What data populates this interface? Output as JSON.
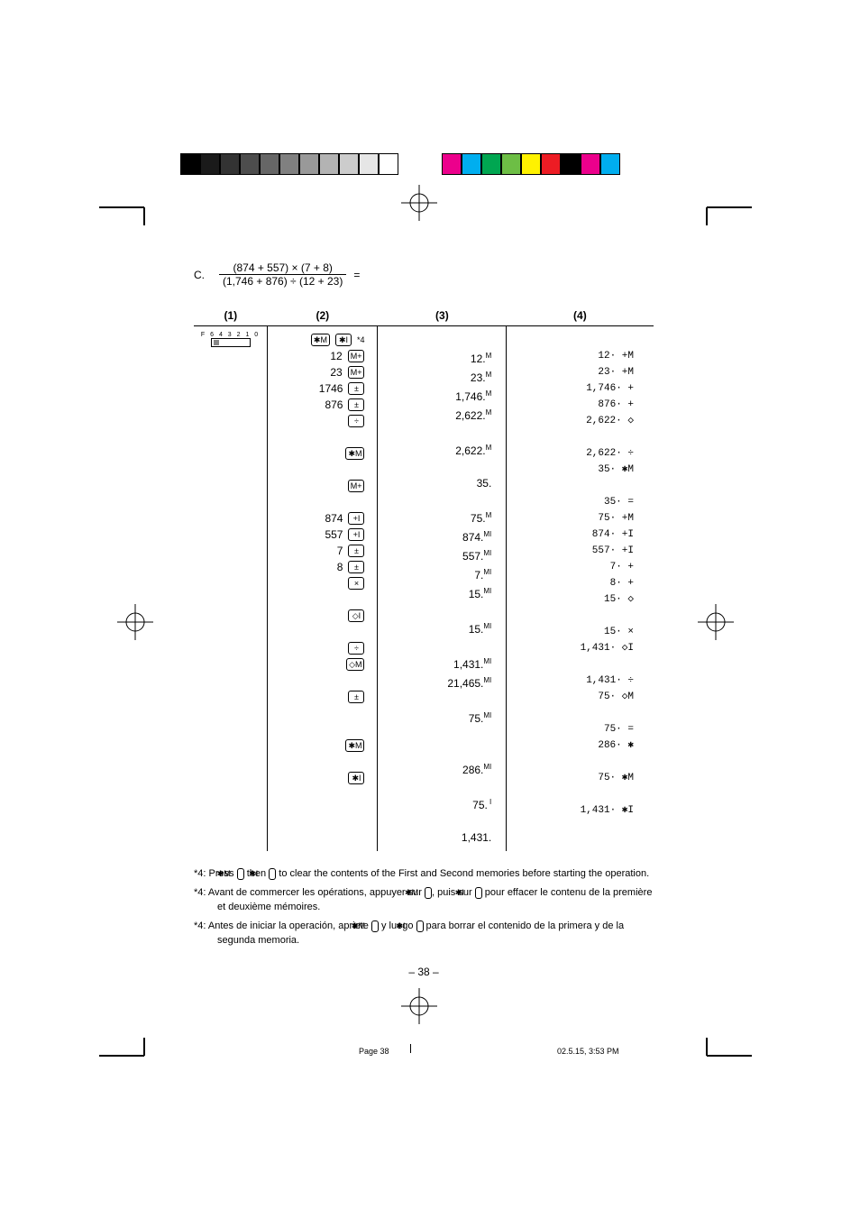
{
  "colorbars": {
    "left": [
      "#000000",
      "#1a1a1a",
      "#333333",
      "#4d4d4d",
      "#666666",
      "#808080",
      "#999999",
      "#b3b3b3",
      "#cccccc",
      "#e6e6e6",
      "#ffffff"
    ],
    "right": [
      "#ec008c",
      "#00aeef",
      "#00a651",
      "#6dbe45",
      "#fff200",
      "#ed1c24",
      "#000000",
      "#ec008c",
      "#00aeef"
    ]
  },
  "problem": {
    "label": "C.",
    "numerator": "(874 + 557) × (7 + 8)",
    "denominator": "(1,746 + 876) ÷ (12 + 23)",
    "equals": "="
  },
  "headers": {
    "c1": "(1)",
    "c2": "(2)",
    "c3": "(3)",
    "c4": "(4)"
  },
  "switch": "F 6 4 3 2 1 0",
  "c2": [
    {
      "num": "",
      "keys": [
        "✱M",
        "✱I"
      ],
      "suffix": "*4"
    },
    {
      "num": "12",
      "keys": [
        "M+"
      ]
    },
    {
      "num": "23",
      "keys": [
        "M+"
      ]
    },
    {
      "num": "1746",
      "keys": [
        "±"
      ]
    },
    {
      "num": "876",
      "keys": [
        "±"
      ]
    },
    {
      "num": "",
      "keys": [
        "÷"
      ]
    },
    {
      "num": "",
      "keys": []
    },
    {
      "num": "",
      "keys": [
        "✱M"
      ]
    },
    {
      "num": "",
      "keys": []
    },
    {
      "num": "",
      "keys": [
        "M+"
      ]
    },
    {
      "num": "",
      "keys": []
    },
    {
      "num": "874",
      "keys": [
        "+I"
      ]
    },
    {
      "num": "557",
      "keys": [
        "+I"
      ]
    },
    {
      "num": "7",
      "keys": [
        "±"
      ]
    },
    {
      "num": "8",
      "keys": [
        "±"
      ]
    },
    {
      "num": "",
      "keys": [
        "×"
      ]
    },
    {
      "num": "",
      "keys": []
    },
    {
      "num": "",
      "keys": [
        "◇I"
      ]
    },
    {
      "num": "",
      "keys": []
    },
    {
      "num": "",
      "keys": [
        "÷"
      ]
    },
    {
      "num": "",
      "keys": [
        "◇M"
      ]
    },
    {
      "num": "",
      "keys": []
    },
    {
      "num": "",
      "keys": [
        "±"
      ]
    },
    {
      "num": "",
      "keys": []
    },
    {
      "num": "",
      "keys": []
    },
    {
      "num": "",
      "keys": [
        "✱M"
      ]
    },
    {
      "num": "",
      "keys": []
    },
    {
      "num": "",
      "keys": [
        "✱I"
      ]
    },
    {
      "num": "",
      "keys": []
    }
  ],
  "c3": [
    "",
    {
      "v": "12.",
      "s": "M"
    },
    {
      "v": "23.",
      "s": "M"
    },
    {
      "v": "1,746.",
      "s": "M"
    },
    {
      "v": "2,622.",
      "s": "M"
    },
    "",
    {
      "v": "2,622.",
      "s": "M"
    },
    "",
    {
      "v": "35.",
      "s": ""
    },
    "",
    {
      "v": "75.",
      "s": "M"
    },
    {
      "v": "874.",
      "s": "MI"
    },
    {
      "v": "557.",
      "s": "MI"
    },
    {
      "v": "7.",
      "s": "MI"
    },
    {
      "v": "15.",
      "s": "MI"
    },
    "",
    {
      "v": "15.",
      "s": "MI"
    },
    "",
    {
      "v": "1,431.",
      "s": "MI"
    },
    {
      "v": "21,465.",
      "s": "MI"
    },
    "",
    {
      "v": "75.",
      "s": "MI"
    },
    "",
    "",
    {
      "v": "286.",
      "s": "MI"
    },
    "",
    {
      "v": "75.",
      "s": "  I"
    },
    "",
    {
      "v": "1,431.",
      "s": ""
    }
  ],
  "c4": [
    "",
    "12· +M",
    "23· +M",
    "1,746· +",
    "876· +",
    "2,622· ◇",
    "",
    "2,622· ÷",
    "35· ✱M",
    "",
    "35· =",
    "75· +M",
    "874· +I",
    "557· +I",
    "7· +",
    "8· +",
    "15· ◇",
    "",
    "15· ×",
    "1,431· ◇I",
    "",
    "1,431· ÷",
    "75· ◇M",
    "",
    "75· =",
    "286· ✱",
    "",
    "75· ✱M",
    "",
    "1,431· ✱I"
  ],
  "footnotes": {
    "en": {
      "pre": "*4:  Press ",
      "k1": "✱M",
      "mid": " then ",
      "k2": "✱I",
      "post": " to clear the contents of the First and Second memories before starting the operation."
    },
    "fr": {
      "pre": "*4:  Avant de commercer les opérations, appuyer sur ",
      "k1": "✱M",
      "mid": ", puis sur ",
      "k2": "✱I",
      "post": " pour effacer le contenu de la première et deuxième mémoires."
    },
    "es": {
      "pre": "*4:  Antes de iniciar la operación, apriete ",
      "k1": "✱M",
      "mid": " y luego ",
      "k2": "✱I",
      "post": " para borrar el contenido de la primera y de la segunda memoria."
    }
  },
  "pagenum": "– 38 –",
  "footer": {
    "left": "Page 38",
    "right": "02.5.15, 3:53 PM"
  }
}
